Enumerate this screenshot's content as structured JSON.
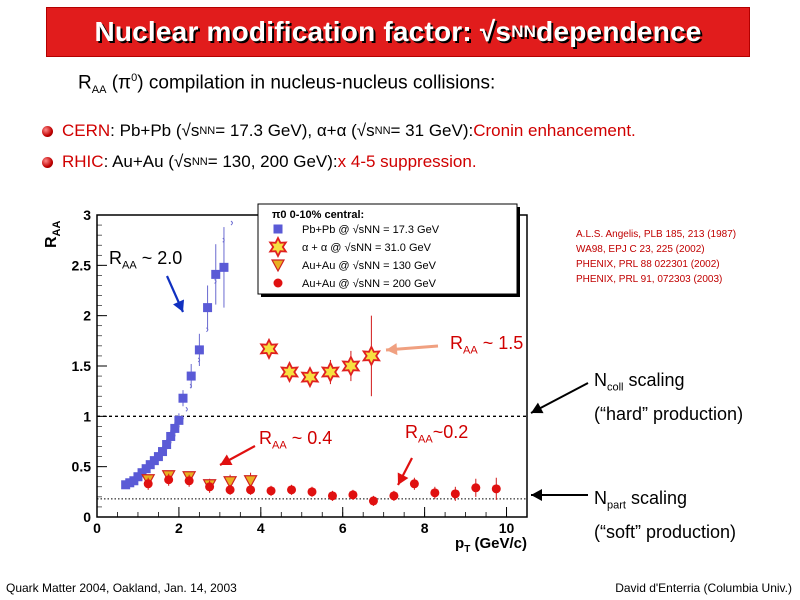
{
  "slide": {
    "title_pre": "Nuclear modification factor:  √s",
    "title_sub": "NN",
    "title_post": " dependence",
    "subtitle_a": "R",
    "subtitle_sub": "AA",
    "subtitle_b": " (π",
    "subtitle_sup": "0",
    "subtitle_c": ") compilation in nucleus-nucleus collisions:",
    "bullet1": {
      "p1": "CERN",
      "p2": ": Pb+Pb (√s",
      "s1": "NN",
      "p3": " = 17.3 GeV), α+α (√s",
      "s2": "NN",
      "p4": "= 31 GeV): ",
      "p5": "Cronin enhancement."
    },
    "bullet2": {
      "p1": "RHIC",
      "p2": ": Au+Au (√s",
      "s1": "NN",
      "p3": " = 130, 200 GeV): ",
      "p4": "x 4-5 suppression."
    },
    "references": [
      "A.L.S. Angelis, PLB 185, 213 (1987)",
      "WA98, EPJ C 23, 225 (2002)",
      "PHENIX, PRL 88 022301 (2002)",
      "PHENIX, PRL 91, 072303  (2003)"
    ],
    "annotations": {
      "raa20": {
        "r": "R",
        "sub": "AA",
        "txt": " ~  2.0"
      },
      "raa15": {
        "r": "R",
        "sub": "AA",
        "txt": " ~ 1.5"
      },
      "raa04": {
        "r": "R",
        "sub": "AA",
        "txt": " ~  0.4"
      },
      "raa02": {
        "r": "R",
        "sub": "AA",
        "txt": "~0.2"
      },
      "ncoll": {
        "n": "N",
        "sub": "coll",
        "txt": " scaling",
        "line2": "(“hard” production)"
      },
      "npart": {
        "n": "N",
        "sub": "part",
        "txt": " scaling",
        "line2": "(“soft” production)"
      }
    },
    "footer_left": "Quark Matter 2004, Oakland, Jan. 14, 2003",
    "footer_right": "David d'Enterria (Columbia Univ.)"
  },
  "chart_data": {
    "type": "scatter",
    "xlabel": "p_T (GeV/c)",
    "ylabel": "R_AA",
    "xlim": [
      0,
      10.5
    ],
    "ylim": [
      0,
      3
    ],
    "xticks": [
      "0",
      "2",
      "4",
      "6",
      "8",
      "10"
    ],
    "yticks": [
      "0",
      "0.5",
      "1",
      "1.5",
      "2",
      "2.5",
      "3"
    ],
    "reference_lines": [
      {
        "y": 1.0,
        "label": "N_coll scaling"
      },
      {
        "y": 0.18,
        "label": "N_part scaling"
      }
    ],
    "legend": {
      "title": "π0 0-10% central:",
      "entries": [
        "Pb+Pb @ √sNN = 17.3 GeV",
        "α + α  @ √sNN = 31.0 GeV",
        "Au+Au @ √sNN = 130 GeV",
        "Au+Au @ √sNN = 200 GeV"
      ]
    },
    "colors": {
      "pbpb": "#5a5ad6",
      "alpha": "#e02020",
      "auau130": "#e8b020",
      "auau200": "#e01010"
    },
    "series": [
      {
        "name": "Pb+Pb @ √sNN = 17.3 GeV",
        "marker": "square",
        "points": [
          [
            0.7,
            0.32
          ],
          [
            0.8,
            0.34
          ],
          [
            0.9,
            0.36
          ],
          [
            1.0,
            0.4
          ],
          [
            1.1,
            0.44
          ],
          [
            1.2,
            0.48
          ],
          [
            1.3,
            0.52
          ],
          [
            1.4,
            0.56
          ],
          [
            1.5,
            0.6
          ],
          [
            1.6,
            0.65
          ],
          [
            1.7,
            0.72
          ],
          [
            1.8,
            0.8
          ],
          [
            1.9,
            0.88
          ],
          [
            2.0,
            0.96
          ],
          [
            2.1,
            1.18
          ],
          [
            2.3,
            1.4
          ],
          [
            2.5,
            1.66
          ],
          [
            2.7,
            2.08
          ],
          [
            2.9,
            2.41
          ],
          [
            3.1,
            2.48
          ]
        ],
        "errors": [
          0.02,
          0.02,
          0.02,
          0.02,
          0.03,
          0.03,
          0.03,
          0.03,
          0.04,
          0.05,
          0.05,
          0.06,
          0.06,
          0.07,
          0.08,
          0.12,
          0.16,
          0.22,
          0.3,
          0.4
        ]
      },
      {
        "name": "α + α  @ √sNN = 31.0 GeV",
        "marker": "star",
        "points": [
          [
            4.2,
            1.67
          ],
          [
            4.7,
            1.44
          ],
          [
            5.2,
            1.39
          ],
          [
            5.7,
            1.44
          ],
          [
            6.2,
            1.5
          ],
          [
            6.7,
            1.6
          ]
        ],
        "errors": [
          0.06,
          0.08,
          0.1,
          0.12,
          0.15,
          0.4
        ]
      },
      {
        "name": "Au+Au @ √sNN = 130 GeV",
        "marker": "triangle",
        "points": [
          [
            1.25,
            0.37
          ],
          [
            1.75,
            0.41
          ],
          [
            2.25,
            0.4
          ],
          [
            2.75,
            0.32
          ],
          [
            3.25,
            0.35
          ],
          [
            3.75,
            0.36
          ]
        ],
        "errors": [
          0.05,
          0.05,
          0.05,
          0.06,
          0.07,
          0.08
        ]
      },
      {
        "name": "Au+Au @ √sNN = 200 GeV",
        "marker": "circle",
        "points": [
          [
            1.25,
            0.33
          ],
          [
            1.75,
            0.37
          ],
          [
            2.25,
            0.36
          ],
          [
            2.75,
            0.3
          ],
          [
            3.25,
            0.27
          ],
          [
            3.75,
            0.27
          ],
          [
            4.25,
            0.26
          ],
          [
            4.75,
            0.27
          ],
          [
            5.25,
            0.25
          ],
          [
            5.75,
            0.21
          ],
          [
            6.25,
            0.22
          ],
          [
            6.75,
            0.16
          ],
          [
            7.25,
            0.21
          ],
          [
            7.75,
            0.33
          ],
          [
            8.25,
            0.24
          ],
          [
            8.75,
            0.23
          ],
          [
            9.25,
            0.29
          ],
          [
            9.75,
            0.28
          ]
        ],
        "errors": [
          0.06,
          0.06,
          0.06,
          0.06,
          0.05,
          0.05,
          0.05,
          0.05,
          0.05,
          0.05,
          0.05,
          0.05,
          0.05,
          0.06,
          0.06,
          0.07,
          0.09,
          0.11
        ]
      }
    ]
  }
}
